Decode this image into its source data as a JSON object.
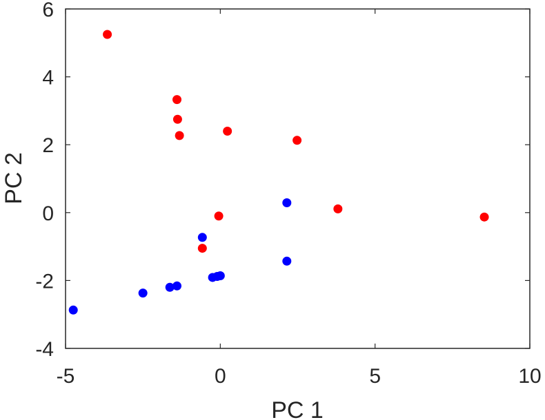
{
  "chart_data": {
    "type": "scatter",
    "title": "",
    "xlabel": "PC 1",
    "ylabel": "PC 2",
    "xlim": [
      -5,
      10
    ],
    "ylim": [
      -4,
      6
    ],
    "xticks": [
      -5,
      0,
      5,
      10
    ],
    "yticks": [
      -4,
      -2,
      0,
      2,
      4,
      6
    ],
    "xtick_labels": [
      "-5",
      "0",
      "5",
      "10"
    ],
    "ytick_labels": [
      "-4",
      "-2",
      "0",
      "2",
      "4",
      "6"
    ],
    "grid": false,
    "legend": "none",
    "series": [
      {
        "color": "#ff0000",
        "points": [
          {
            "x": -3.65,
            "y": 5.25
          },
          {
            "x": -1.4,
            "y": 3.33
          },
          {
            "x": -1.38,
            "y": 2.75
          },
          {
            "x": -1.32,
            "y": 2.27
          },
          {
            "x": 0.23,
            "y": 2.4
          },
          {
            "x": 2.48,
            "y": 2.13
          },
          {
            "x": 3.8,
            "y": 0.11
          },
          {
            "x": 8.53,
            "y": -0.13
          },
          {
            "x": -0.05,
            "y": -0.1
          },
          {
            "x": -0.58,
            "y": -1.05
          }
        ]
      },
      {
        "color": "#0000ff",
        "points": [
          {
            "x": 2.15,
            "y": 0.29
          },
          {
            "x": -0.58,
            "y": -0.73
          },
          {
            "x": 2.15,
            "y": -1.43
          },
          {
            "x": -0.25,
            "y": -1.91
          },
          {
            "x": -0.1,
            "y": -1.88
          },
          {
            "x": 0.0,
            "y": -1.86
          },
          {
            "x": -1.4,
            "y": -2.16
          },
          {
            "x": -1.63,
            "y": -2.2
          },
          {
            "x": -2.5,
            "y": -2.37
          },
          {
            "x": -4.75,
            "y": -2.87
          }
        ]
      }
    ]
  }
}
